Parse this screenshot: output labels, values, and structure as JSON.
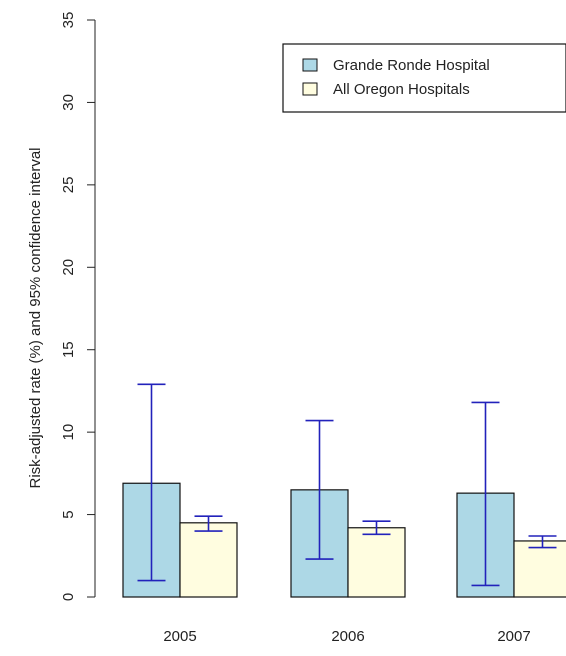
{
  "chart_data": {
    "type": "bar",
    "title": "",
    "xlabel": "",
    "ylabel": "Risk-adjusted rate (%) and 95% confidence interval",
    "ylim": [
      0,
      35
    ],
    "yticks": [
      0,
      5,
      10,
      15,
      20,
      25,
      30,
      35
    ],
    "categories": [
      "2005",
      "2006",
      "2007"
    ],
    "series": [
      {
        "name": "Grande Ronde Hospital",
        "color": "#add8e6",
        "values": [
          6.9,
          6.5,
          6.3
        ],
        "ci_low": [
          1.0,
          2.3,
          0.7
        ],
        "ci_high": [
          12.9,
          10.7,
          11.8
        ]
      },
      {
        "name": "All Oregon Hospitals",
        "color": "#fffde0",
        "values": [
          4.5,
          4.2,
          3.4
        ],
        "ci_low": [
          4.0,
          3.8,
          3.0
        ],
        "ci_high": [
          4.9,
          4.6,
          3.7
        ]
      }
    ],
    "error_bar_color": "#2222bb",
    "grid": false,
    "legend_position": "top-right"
  }
}
